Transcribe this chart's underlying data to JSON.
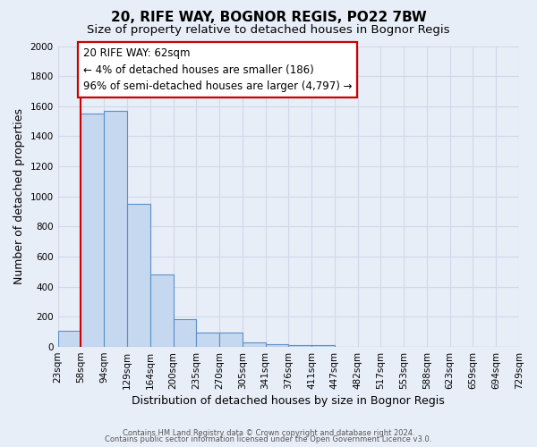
{
  "title": "20, RIFE WAY, BOGNOR REGIS, PO22 7BW",
  "subtitle": "Size of property relative to detached houses in Bognor Regis",
  "xlabel": "Distribution of detached houses by size in Bognor Regis",
  "ylabel": "Number of detached properties",
  "bin_labels": [
    "23sqm",
    "58sqm",
    "94sqm",
    "129sqm",
    "164sqm",
    "200sqm",
    "235sqm",
    "270sqm",
    "305sqm",
    "341sqm",
    "376sqm",
    "411sqm",
    "447sqm",
    "482sqm",
    "517sqm",
    "553sqm",
    "588sqm",
    "623sqm",
    "659sqm",
    "694sqm",
    "729sqm"
  ],
  "values": [
    110,
    1550,
    1570,
    950,
    480,
    185,
    95,
    95,
    30,
    20,
    10,
    10,
    0,
    0,
    0,
    0,
    0,
    0,
    0,
    0
  ],
  "bar_color": "#c5d8f0",
  "bar_edge_color": "#5b8fc9",
  "ylim": [
    0,
    2000
  ],
  "yticks": [
    0,
    200,
    400,
    600,
    800,
    1000,
    1200,
    1400,
    1600,
    1800,
    2000
  ],
  "vline_x": 1.0,
  "vline_color": "#cc0000",
  "annotation_line1": "20 RIFE WAY: 62sqm",
  "annotation_line2": "← 4% of detached houses are smaller (186)",
  "annotation_line3": "96% of semi-detached houses are larger (4,797) →",
  "annotation_box_facecolor": "#ffffff",
  "annotation_box_edgecolor": "#cc0000",
  "background_color": "#e8eef8",
  "grid_color": "#d0d8e8",
  "footer_line1": "Contains HM Land Registry data © Crown copyright and database right 2024.",
  "footer_line2": "Contains public sector information licensed under the Open Government Licence v3.0.",
  "title_fontsize": 11,
  "subtitle_fontsize": 9.5,
  "ylabel_fontsize": 9,
  "xlabel_fontsize": 9,
  "tick_fontsize": 7.5,
  "annotation_fontsize": 8.5,
  "footer_fontsize": 6
}
